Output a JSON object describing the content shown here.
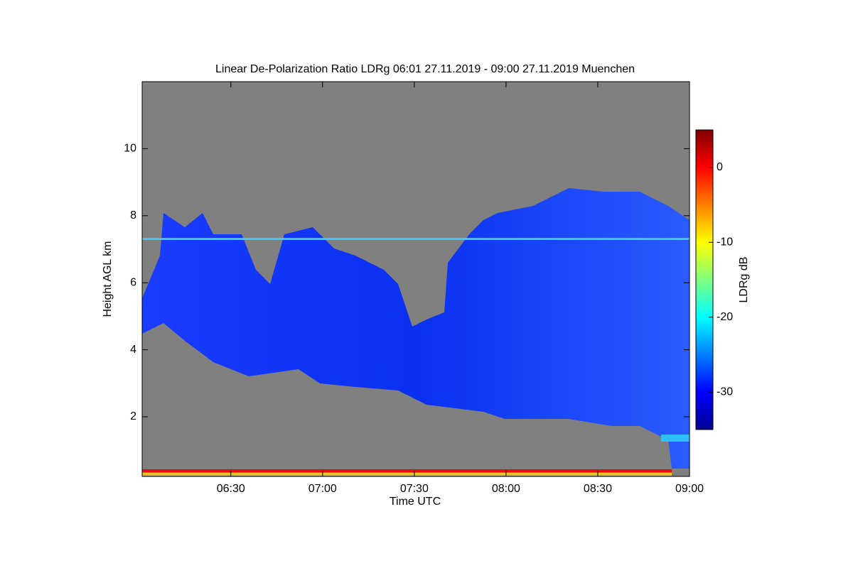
{
  "chart_data": {
    "type": "heatmap",
    "title": "Linear De-Polarization Ratio LDRg   06:01 27.11.2019 - 09:00 27.11.2019 Muenchen",
    "xlabel": "Time UTC",
    "ylabel": "Height AGL km",
    "xlim": [
      361,
      540
    ],
    "xticks": [
      {
        "value": 390,
        "label": "06:30"
      },
      {
        "value": 420,
        "label": "07:00"
      },
      {
        "value": 450,
        "label": "07:30"
      },
      {
        "value": 480,
        "label": "08:00"
      },
      {
        "value": 510,
        "label": "08:30"
      },
      {
        "value": 540,
        "label": "09:00"
      }
    ],
    "ylim": [
      0.22,
      12
    ],
    "yticks": [
      2,
      4,
      6,
      8,
      10
    ],
    "colorbar": {
      "label": "LDRg dB",
      "clim": [
        -35,
        5
      ],
      "ticks": [
        0,
        -10,
        -20,
        -30
      ],
      "colormap": "jet"
    },
    "background_color": "#808080"
  }
}
